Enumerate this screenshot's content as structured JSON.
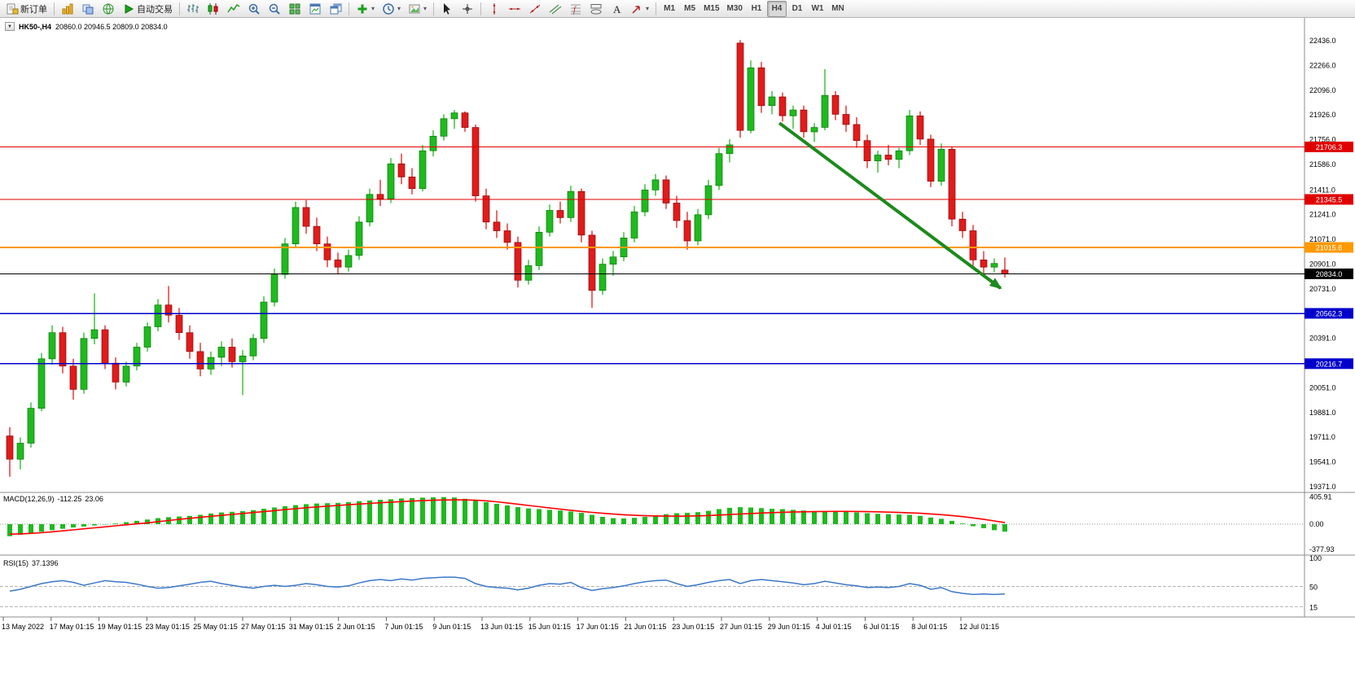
{
  "toolbar": {
    "badge_count": "1",
    "right_icons": [
      {
        "name": "search-icon",
        "icon": "search"
      }
    ],
    "groups": [
      {
        "items": [
          {
            "name": "new-order-button",
            "icon": "neworder",
            "label": "新订单"
          }
        ]
      },
      {
        "items": [
          {
            "name": "chart-list-button",
            "icon": "charts"
          },
          {
            "name": "profiles-button",
            "icon": "profiles"
          },
          {
            "name": "community-button",
            "icon": "community"
          },
          {
            "name": "auto-trading-button",
            "icon": "autotrade",
            "label": "自动交易"
          }
        ]
      },
      {
        "items": [
          {
            "name": "bar-chart-button",
            "icon": "barchart"
          },
          {
            "name": "candlestick-chart-button",
            "icon": "candlechart"
          },
          {
            "name": "line-chart-button",
            "icon": "linechart"
          },
          {
            "name": "zoom-in-button",
            "icon": "zoomin"
          },
          {
            "name": "zoom-out-button",
            "icon": "zoomout"
          },
          {
            "name": "tile-windows-button",
            "icon": "tile"
          },
          {
            "name": "arrange-windows-button",
            "icon": "arrange"
          },
          {
            "name": "cascade-windows-button",
            "icon": "cascade"
          }
        ]
      },
      {
        "items": [
          {
            "name": "indicators-button",
            "icon": "indicators",
            "caret": true
          },
          {
            "name": "periods-button",
            "icon": "clock",
            "caret": true
          },
          {
            "name": "templates-button",
            "icon": "template",
            "caret": true
          }
        ]
      },
      {
        "items": [
          {
            "name": "cursor-button",
            "icon": "cursor"
          },
          {
            "name": "crosshair-button",
            "icon": "crosshair"
          }
        ]
      },
      {
        "items": [
          {
            "name": "vertical-line-button",
            "icon": "vline"
          },
          {
            "name": "horizontal-line-button",
            "icon": "hline"
          },
          {
            "name": "trendline-button",
            "icon": "trendline"
          },
          {
            "name": "channel-button",
            "icon": "channel"
          },
          {
            "name": "fibonacci-button",
            "icon": "fibo"
          },
          {
            "name": "shapes-button",
            "icon": "shapes"
          },
          {
            "name": "text-button",
            "icon": "text"
          },
          {
            "name": "arrows-button",
            "icon": "arrows",
            "caret": true
          }
        ]
      },
      {
        "items": [
          {
            "name": "timeframe-m1-button",
            "label": "M1",
            "tf": true
          },
          {
            "name": "timeframe-m5-button",
            "label": "M5",
            "tf": true
          },
          {
            "name": "timeframe-m15-button",
            "label": "M15",
            "tf": true
          },
          {
            "name": "timeframe-m30-button",
            "label": "M30",
            "tf": true
          },
          {
            "name": "timeframe-h1-button",
            "label": "H1",
            "tf": true
          },
          {
            "name": "timeframe-h4-button",
            "label": "H4",
            "tf": true,
            "active": true
          },
          {
            "name": "timeframe-d1-button",
            "label": "D1",
            "tf": true
          },
          {
            "name": "timeframe-w1-button",
            "label": "W1",
            "tf": true
          },
          {
            "name": "timeframe-mn-button",
            "label": "MN",
            "tf": true
          }
        ]
      }
    ]
  },
  "chart_data": {
    "type": "candlestick",
    "symbol": "HK50-",
    "timeframe": "H4",
    "title": "HK50-,H4",
    "ohlc_text": "20860.0 20946.5 20809.0 20834.0",
    "grid": false,
    "background": "#ffffff",
    "up_color": "#1fba1f",
    "down_color": "#e11b1b",
    "price_range": [
      19371,
      22436
    ],
    "price_axis": {
      "ticks": [
        22436,
        22266,
        22096,
        21926,
        21756,
        21586,
        21411,
        21241,
        21071,
        20901,
        20731,
        20561,
        20391,
        20221,
        20051,
        19881,
        19711,
        19541,
        19371
      ]
    },
    "hlines": [
      {
        "price": 21706.3,
        "color": "#e00000",
        "width": 1
      },
      {
        "price": 21345.5,
        "color": "#e00000",
        "width": 1
      },
      {
        "price": 21015.6,
        "color": "#ff9900",
        "width": 2
      },
      {
        "price": 20834.0,
        "color": "#000000",
        "width": 1
      },
      {
        "price": 20562.3,
        "color": "#0000cc",
        "width": 1.5
      },
      {
        "price": 20216.7,
        "color": "#0000cc",
        "width": 1.5
      }
    ],
    "arrow": {
      "from_index": 72.7,
      "from_price": 21870,
      "to_index": 93.6,
      "to_price": 20735,
      "color": "#1c8a1c"
    },
    "time_axis": [
      "13 May 2022",
      "17 May 01:15",
      "19 May 01:15",
      "23 May 01:15",
      "25 May 01:15",
      "27 May 01:15",
      "31 May 01:15",
      "2 Jun 01:15",
      "7 Jun 01:15",
      "9 Jun 01:15",
      "13 Jun 01:15",
      "15 Jun 01:15",
      "17 Jun 01:15",
      "21 Jun 01:15",
      "23 Jun 01:15",
      "27 Jun 01:15",
      "29 Jun 01:15",
      "4 Jul 01:15",
      "6 Jul 01:15",
      "8 Jul 01:15",
      "12 Jul 01:15"
    ],
    "candles": [
      [
        19720,
        19780,
        19440,
        19560
      ],
      [
        19560,
        19710,
        19490,
        19670
      ],
      [
        19670,
        19950,
        19640,
        19910
      ],
      [
        19910,
        20290,
        19890,
        20250
      ],
      [
        20250,
        20480,
        20210,
        20430
      ],
      [
        20430,
        20470,
        20150,
        20200
      ],
      [
        20200,
        20250,
        19970,
        20040
      ],
      [
        20040,
        20430,
        20010,
        20390
      ],
      [
        20390,
        20700,
        20350,
        20450
      ],
      [
        20450,
        20480,
        20180,
        20220
      ],
      [
        20220,
        20260,
        20040,
        20090
      ],
      [
        20090,
        20230,
        20060,
        20200
      ],
      [
        20200,
        20360,
        20170,
        20330
      ],
      [
        20330,
        20500,
        20300,
        20470
      ],
      [
        20470,
        20660,
        20440,
        20620
      ],
      [
        20620,
        20750,
        20500,
        20550
      ],
      [
        20550,
        20600,
        20380,
        20430
      ],
      [
        20430,
        20480,
        20250,
        20300
      ],
      [
        20300,
        20360,
        20130,
        20180
      ],
      [
        20180,
        20300,
        20140,
        20260
      ],
      [
        20260,
        20370,
        20200,
        20330
      ],
      [
        20330,
        20390,
        20190,
        20230
      ],
      [
        20230,
        20310,
        20000,
        20270
      ],
      [
        20270,
        20420,
        20240,
        20390
      ],
      [
        20390,
        20680,
        20360,
        20640
      ],
      [
        20640,
        20870,
        20610,
        20830
      ],
      [
        20830,
        21080,
        20800,
        21040
      ],
      [
        21040,
        21330,
        21010,
        21290
      ],
      [
        21290,
        21340,
        21110,
        21160
      ],
      [
        21160,
        21220,
        20990,
        21040
      ],
      [
        21040,
        21090,
        20880,
        20930
      ],
      [
        20930,
        20980,
        20830,
        20880
      ],
      [
        20880,
        21000,
        20850,
        20960
      ],
      [
        20960,
        21230,
        20930,
        21190
      ],
      [
        21190,
        21420,
        21160,
        21380
      ],
      [
        21380,
        21480,
        21300,
        21350
      ],
      [
        21350,
        21630,
        21320,
        21590
      ],
      [
        21590,
        21660,
        21450,
        21500
      ],
      [
        21500,
        21560,
        21380,
        21420
      ],
      [
        21420,
        21720,
        21400,
        21680
      ],
      [
        21680,
        21820,
        21640,
        21780
      ],
      [
        21780,
        21930,
        21750,
        21900
      ],
      [
        21900,
        21960,
        21830,
        21940
      ],
      [
        21940,
        21950,
        21810,
        21840
      ],
      [
        21840,
        21860,
        21330,
        21370
      ],
      [
        21370,
        21420,
        21140,
        21190
      ],
      [
        21190,
        21270,
        21080,
        21130
      ],
      [
        21130,
        21180,
        21000,
        21050
      ],
      [
        21050,
        21090,
        20740,
        20790
      ],
      [
        20790,
        20930,
        20760,
        20890
      ],
      [
        20890,
        21160,
        20860,
        21120
      ],
      [
        21120,
        21310,
        21090,
        21270
      ],
      [
        21270,
        21330,
        21180,
        21220
      ],
      [
        21220,
        21440,
        21190,
        21400
      ],
      [
        21400,
        21420,
        21050,
        21100
      ],
      [
        21100,
        21130,
        20600,
        20720
      ],
      [
        20720,
        20940,
        20690,
        20900
      ],
      [
        20900,
        20990,
        20820,
        20950
      ],
      [
        20950,
        21120,
        20920,
        21080
      ],
      [
        21080,
        21300,
        21050,
        21260
      ],
      [
        21260,
        21450,
        21230,
        21410
      ],
      [
        21410,
        21520,
        21370,
        21480
      ],
      [
        21480,
        21510,
        21280,
        21320
      ],
      [
        21320,
        21370,
        21150,
        21200
      ],
      [
        21200,
        21260,
        21000,
        21060
      ],
      [
        21060,
        21280,
        21030,
        21240
      ],
      [
        21240,
        21480,
        21210,
        21440
      ],
      [
        21440,
        21700,
        21410,
        21660
      ],
      [
        21660,
        21760,
        21600,
        21720
      ],
      [
        22420,
        22440,
        21770,
        21820
      ],
      [
        21820,
        22300,
        21800,
        22250
      ],
      [
        22250,
        22290,
        21940,
        21990
      ],
      [
        21990,
        22090,
        21930,
        22050
      ],
      [
        22050,
        22080,
        21880,
        21920
      ],
      [
        21920,
        21990,
        21830,
        21960
      ],
      [
        21960,
        21990,
        21770,
        21810
      ],
      [
        21810,
        21870,
        21740,
        21840
      ],
      [
        21840,
        22240,
        21820,
        22060
      ],
      [
        22060,
        22090,
        21890,
        21930
      ],
      [
        21930,
        21990,
        21810,
        21860
      ],
      [
        21860,
        21910,
        21700,
        21750
      ],
      [
        21750,
        21790,
        21560,
        21610
      ],
      [
        21610,
        21680,
        21530,
        21650
      ],
      [
        21650,
        21720,
        21580,
        21620
      ],
      [
        21620,
        21700,
        21560,
        21680
      ],
      [
        21680,
        21960,
        21650,
        21920
      ],
      [
        21920,
        21950,
        21720,
        21760
      ],
      [
        21760,
        21790,
        21430,
        21470
      ],
      [
        21470,
        21730,
        21440,
        21690
      ],
      [
        21690,
        21710,
        21160,
        21210
      ],
      [
        21210,
        21260,
        21080,
        21130
      ],
      [
        21130,
        21170,
        20890,
        20930
      ],
      [
        20930,
        20990,
        20830,
        20880
      ],
      [
        20880,
        20940,
        20845,
        20905
      ],
      [
        20860,
        20946,
        20809,
        20834
      ]
    ],
    "macd": {
      "label": "MACD(12,26,9)",
      "value": "-112.25",
      "signal_value": "23.06",
      "hist_color": "#1fba1f",
      "signal_color": "#ff0000",
      "axis": [
        {
          "v": 405.91,
          "t": "405.91"
        },
        {
          "v": 0,
          "t": "0.00"
        },
        {
          "v": -377.93,
          "t": "-377.93"
        }
      ],
      "histogram": [
        -180,
        -160,
        -140,
        -115,
        -90,
        -70,
        -50,
        -35,
        -20,
        -5,
        10,
        30,
        50,
        70,
        90,
        105,
        115,
        125,
        140,
        160,
        175,
        185,
        195,
        210,
        230,
        250,
        270,
        285,
        300,
        310,
        315,
        320,
        330,
        345,
        355,
        365,
        375,
        385,
        390,
        398,
        402,
        406,
        400,
        380,
        355,
        330,
        305,
        280,
        255,
        235,
        225,
        215,
        205,
        190,
        170,
        140,
        110,
        90,
        85,
        95,
        110,
        130,
        150,
        165,
        170,
        180,
        200,
        225,
        245,
        255,
        250,
        240,
        230,
        225,
        215,
        205,
        195,
        190,
        195,
        185,
        175,
        165,
        155,
        150,
        145,
        140,
        125,
        100,
        80,
        50,
        10,
        -30,
        -60,
        -90,
        -112
      ],
      "signal": [
        -150,
        -145,
        -138,
        -128,
        -115,
        -100,
        -85,
        -70,
        -55,
        -40,
        -25,
        -10,
        5,
        20,
        38,
        55,
        72,
        88,
        103,
        118,
        132,
        146,
        160,
        174,
        188,
        203,
        218,
        232,
        246,
        259,
        270,
        281,
        291,
        301,
        311,
        321,
        330,
        338,
        346,
        353,
        358,
        362,
        364,
        363,
        358,
        350,
        335,
        318,
        300,
        281,
        262,
        243,
        225,
        208,
        192,
        177,
        163,
        151,
        141,
        133,
        127,
        123,
        121,
        120,
        121,
        124,
        129,
        136,
        144,
        152,
        160,
        167,
        173,
        178,
        182,
        185,
        188,
        190,
        191,
        191,
        190,
        188,
        185,
        181,
        176,
        170,
        163,
        154,
        143,
        129,
        113,
        94,
        72,
        49,
        23
      ]
    },
    "rsi": {
      "label": "RSI(15)",
      "value": "37.1396",
      "color": "#3c78c8",
      "levels": [
        50,
        15
      ],
      "axis": [
        {
          "v": 100,
          "t": "100"
        },
        {
          "v": 50,
          "t": "50"
        },
        {
          "v": 15,
          "t": "15"
        }
      ],
      "values": [
        42,
        45,
        50,
        55,
        58,
        60,
        57,
        52,
        56,
        60,
        58,
        57,
        54,
        50,
        47,
        48,
        51,
        54,
        57,
        59,
        55,
        52,
        49,
        47,
        50,
        52,
        50,
        52,
        55,
        53,
        50,
        49,
        51,
        56,
        60,
        62,
        60,
        63,
        61,
        64,
        65,
        66,
        66,
        64,
        55,
        50,
        48,
        47,
        44,
        47,
        52,
        55,
        54,
        57,
        48,
        43,
        46,
        48,
        51,
        55,
        58,
        60,
        61,
        55,
        50,
        53,
        57,
        60,
        62,
        55,
        60,
        62,
        60,
        58,
        56,
        53,
        55,
        59,
        56,
        53,
        51,
        48,
        49,
        48,
        50,
        55,
        52,
        45,
        48,
        41,
        38,
        36,
        37,
        36,
        37
      ]
    }
  }
}
